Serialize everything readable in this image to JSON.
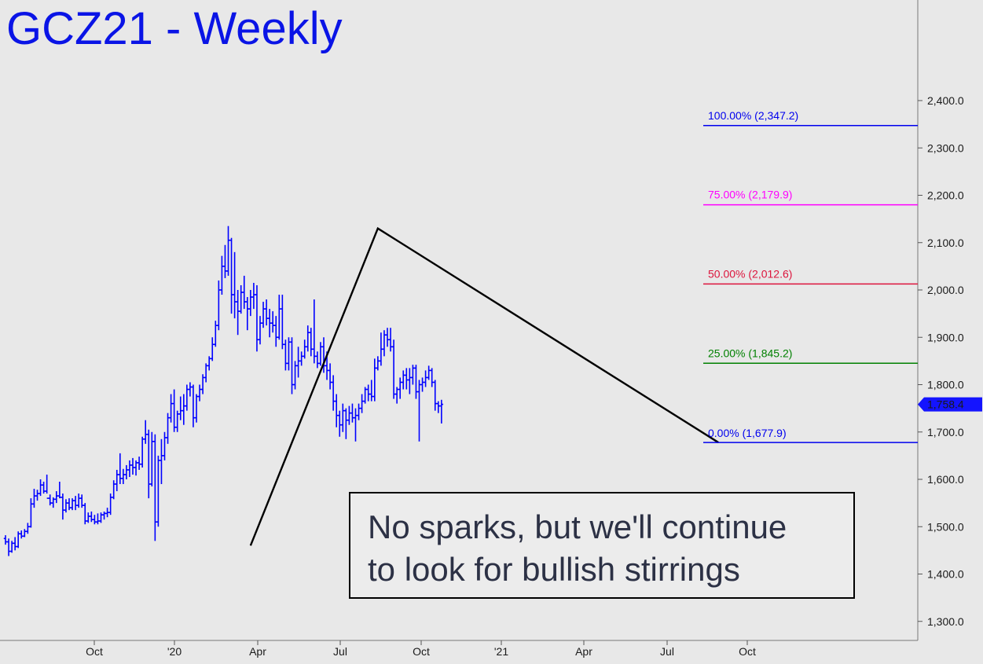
{
  "chart_data": {
    "type": "ohlc",
    "title": "GCZ21 - Weekly",
    "annotation": [
      "No sparks, but we'll continue",
      "to look for bullish stirrings"
    ],
    "ylim": [
      1265,
      2535
    ],
    "yticks": [
      1300,
      1400,
      1500,
      1600,
      1700,
      1800,
      1900,
      2000,
      2100,
      2200,
      2300,
      2400
    ],
    "ytick_labels": [
      "1,300.0",
      "1,400.0",
      "1,500.0",
      "1,600.0",
      "1,700.0",
      "1,800.0",
      "1,900.0",
      "2,000.0",
      "2,100.0",
      "2,200.0",
      "2,300.0",
      "2,400.0"
    ],
    "xlabels": [
      "Oct",
      "'20",
      "Apr",
      "Jul",
      "Oct",
      "'21",
      "Apr",
      "Jul",
      "Oct"
    ],
    "last_price": {
      "value": 1758.4,
      "label": "1,758.4"
    },
    "fib_levels": [
      {
        "label": "100.00% (2,347.2)",
        "value": 2347.2,
        "color": "#0000ee"
      },
      {
        "label": "75.00% (2,179.9)",
        "value": 2179.9,
        "color": "#ff00ff"
      },
      {
        "label": "50.00% (2,012.6)",
        "value": 2012.6,
        "color": "#dc143c"
      },
      {
        "label": "25.00% (1,845.2)",
        "value": 1845.2,
        "color": "#008000"
      },
      {
        "label": "0.00% (1,677.9)",
        "value": 1677.9,
        "color": "#0000ee"
      }
    ],
    "pattern_points": [
      {
        "bar": 77,
        "price": 1460
      },
      {
        "bar": 117,
        "price": 2130
      },
      {
        "bar": 224,
        "price": 1677.9
      }
    ],
    "colors": {
      "bars": "#0000ff",
      "pattern": "#000000"
    },
    "bars_weekly": [
      [
        1475,
        1482,
        1462,
        1468
      ],
      [
        1468,
        1475,
        1438,
        1448
      ],
      [
        1448,
        1470,
        1445,
        1465
      ],
      [
        1465,
        1478,
        1450,
        1458
      ],
      [
        1458,
        1490,
        1455,
        1485
      ],
      [
        1485,
        1492,
        1475,
        1480
      ],
      [
        1480,
        1495,
        1478,
        1490
      ],
      [
        1490,
        1508,
        1485,
        1500
      ],
      [
        1500,
        1560,
        1498,
        1548
      ],
      [
        1548,
        1580,
        1540,
        1565
      ],
      [
        1565,
        1578,
        1555,
        1570
      ],
      [
        1570,
        1600,
        1565,
        1588
      ],
      [
        1588,
        1595,
        1570,
        1575
      ],
      [
        1575,
        1610,
        1570,
        1560
      ],
      [
        1560,
        1568,
        1545,
        1550
      ],
      [
        1550,
        1562,
        1540,
        1558
      ],
      [
        1558,
        1575,
        1550,
        1565
      ],
      [
        1565,
        1595,
        1560,
        1562
      ],
      [
        1562,
        1570,
        1515,
        1535
      ],
      [
        1535,
        1558,
        1530,
        1550
      ],
      [
        1550,
        1560,
        1535,
        1540
      ],
      [
        1540,
        1560,
        1535,
        1555
      ],
      [
        1555,
        1565,
        1535,
        1545
      ],
      [
        1545,
        1570,
        1540,
        1560
      ],
      [
        1560,
        1568,
        1540,
        1545
      ],
      [
        1545,
        1550,
        1505,
        1512
      ],
      [
        1512,
        1530,
        1508,
        1522
      ],
      [
        1522,
        1532,
        1510,
        1515
      ],
      [
        1515,
        1525,
        1505,
        1510
      ],
      [
        1510,
        1528,
        1505,
        1512
      ],
      [
        1512,
        1530,
        1508,
        1525
      ],
      [
        1525,
        1532,
        1515,
        1528
      ],
      [
        1528,
        1540,
        1520,
        1530
      ],
      [
        1530,
        1570,
        1525,
        1562
      ],
      [
        1562,
        1598,
        1558,
        1590
      ],
      [
        1590,
        1620,
        1575,
        1610
      ],
      [
        1610,
        1655,
        1590,
        1602
      ],
      [
        1602,
        1622,
        1590,
        1610
      ],
      [
        1610,
        1630,
        1600,
        1620
      ],
      [
        1620,
        1640,
        1605,
        1630
      ],
      [
        1630,
        1645,
        1610,
        1625
      ],
      [
        1625,
        1640,
        1608,
        1635
      ],
      [
        1635,
        1648,
        1620,
        1632
      ],
      [
        1632,
        1690,
        1625,
        1685
      ],
      [
        1685,
        1725,
        1675,
        1695
      ],
      [
        1695,
        1705,
        1560,
        1590
      ],
      [
        1590,
        1700,
        1585,
        1680
      ],
      [
        1680,
        1695,
        1470,
        1510
      ],
      [
        1510,
        1650,
        1500,
        1640
      ],
      [
        1640,
        1685,
        1590,
        1650
      ],
      [
        1650,
        1700,
        1640,
        1688
      ],
      [
        1688,
        1740,
        1675,
        1730
      ],
      [
        1730,
        1780,
        1720,
        1760
      ],
      [
        1760,
        1790,
        1700,
        1710
      ],
      [
        1710,
        1745,
        1700,
        1738
      ],
      [
        1738,
        1775,
        1725,
        1745
      ],
      [
        1745,
        1780,
        1715,
        1755
      ],
      [
        1755,
        1800,
        1745,
        1790
      ],
      [
        1790,
        1805,
        1775,
        1795
      ],
      [
        1795,
        1800,
        1710,
        1730
      ],
      [
        1730,
        1780,
        1720,
        1775
      ],
      [
        1775,
        1800,
        1765,
        1790
      ],
      [
        1790,
        1822,
        1780,
        1815
      ],
      [
        1815,
        1845,
        1805,
        1840
      ],
      [
        1840,
        1860,
        1830,
        1855
      ],
      [
        1855,
        1900,
        1850,
        1885
      ],
      [
        1885,
        1935,
        1880,
        1925
      ],
      [
        1925,
        2020,
        1915,
        2000
      ],
      [
        2000,
        2072,
        1990,
        2050
      ],
      [
        2050,
        2095,
        2025,
        2040
      ],
      [
        2040,
        2135,
        2030,
        2105
      ],
      [
        2105,
        2110,
        1950,
        1990
      ],
      [
        1990,
        2080,
        1940,
        1975
      ],
      [
        1975,
        2000,
        1905,
        1955
      ],
      [
        1955,
        2010,
        1950,
        1995
      ],
      [
        1995,
        2030,
        1960,
        1975
      ],
      [
        1975,
        1985,
        1915,
        1960
      ],
      [
        1960,
        2000,
        1945,
        1985
      ],
      [
        1985,
        2015,
        1960,
        1990
      ],
      [
        1990,
        2010,
        1870,
        1895
      ],
      [
        1895,
        1945,
        1885,
        1930
      ],
      [
        1930,
        1975,
        1920,
        1960
      ],
      [
        1960,
        1980,
        1925,
        1940
      ],
      [
        1940,
        1960,
        1900,
        1930
      ],
      [
        1930,
        1955,
        1910,
        1925
      ],
      [
        1925,
        1945,
        1880,
        1900
      ],
      [
        1900,
        1990,
        1895,
        1960
      ],
      [
        1960,
        1990,
        1875,
        1885
      ],
      [
        1885,
        1895,
        1830,
        1845
      ],
      [
        1845,
        1900,
        1830,
        1890
      ],
      [
        1890,
        1900,
        1780,
        1800
      ],
      [
        1800,
        1850,
        1790,
        1840
      ],
      [
        1840,
        1880,
        1815,
        1850
      ],
      [
        1850,
        1870,
        1840,
        1860
      ],
      [
        1860,
        1895,
        1855,
        1880
      ],
      [
        1880,
        1925,
        1870,
        1910
      ],
      [
        1910,
        1920,
        1860,
        1875
      ],
      [
        1875,
        1980,
        1845,
        1860
      ],
      [
        1860,
        1870,
        1835,
        1845
      ],
      [
        1845,
        1890,
        1840,
        1880
      ],
      [
        1880,
        1900,
        1825,
        1840
      ],
      [
        1840,
        1870,
        1810,
        1830
      ],
      [
        1830,
        1845,
        1790,
        1805
      ],
      [
        1805,
        1820,
        1745,
        1765
      ],
      [
        1765,
        1780,
        1710,
        1735
      ],
      [
        1735,
        1745,
        1690,
        1715
      ],
      [
        1715,
        1760,
        1700,
        1745
      ],
      [
        1745,
        1750,
        1685,
        1725
      ],
      [
        1725,
        1755,
        1715,
        1740
      ],
      [
        1740,
        1760,
        1720,
        1730
      ],
      [
        1730,
        1750,
        1680,
        1735
      ],
      [
        1735,
        1760,
        1725,
        1750
      ],
      [
        1750,
        1780,
        1740,
        1765
      ],
      [
        1765,
        1795,
        1760,
        1790
      ],
      [
        1790,
        1800,
        1765,
        1780
      ],
      [
        1780,
        1810,
        1765,
        1775
      ],
      [
        1775,
        1855,
        1765,
        1835
      ],
      [
        1835,
        1860,
        1830,
        1850
      ],
      [
        1850,
        1910,
        1840,
        1875
      ],
      [
        1875,
        1915,
        1860,
        1905
      ],
      [
        1905,
        1920,
        1880,
        1895
      ],
      [
        1895,
        1920,
        1870,
        1880
      ],
      [
        1880,
        1895,
        1770,
        1780
      ],
      [
        1780,
        1795,
        1760,
        1790
      ],
      [
        1790,
        1815,
        1770,
        1805
      ],
      [
        1805,
        1830,
        1790,
        1820
      ],
      [
        1820,
        1835,
        1790,
        1810
      ],
      [
        1810,
        1835,
        1780,
        1815
      ],
      [
        1815,
        1842,
        1800,
        1835
      ],
      [
        1835,
        1842,
        1770,
        1785
      ],
      [
        1785,
        1810,
        1680,
        1800
      ],
      [
        1800,
        1815,
        1785,
        1805
      ],
      [
        1805,
        1830,
        1795,
        1815
      ],
      [
        1815,
        1840,
        1810,
        1830
      ],
      [
        1830,
        1835,
        1795,
        1805
      ],
      [
        1805,
        1810,
        1745,
        1760
      ],
      [
        1760,
        1765,
        1740,
        1755
      ],
      [
        1755,
        1768,
        1718,
        1758.4
      ]
    ]
  }
}
